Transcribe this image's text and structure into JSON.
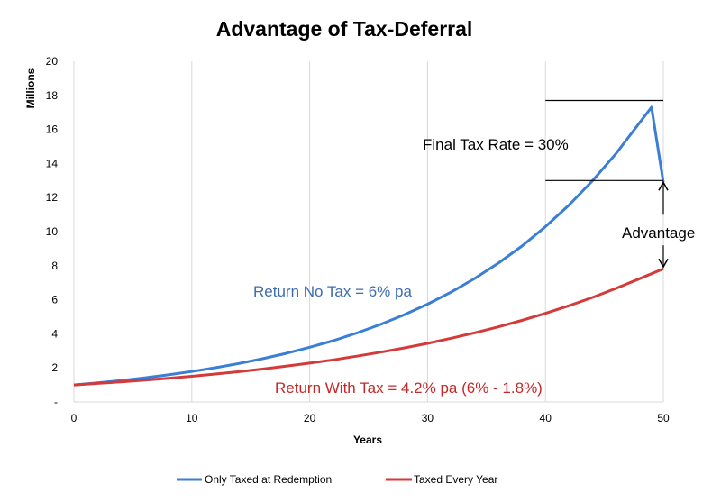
{
  "chart_data": {
    "type": "line",
    "title": "Advantage of Tax-Deferral",
    "xlabel": "Years",
    "ylabel": "Millions",
    "xlim": [
      0,
      50
    ],
    "ylim": [
      0,
      20
    ],
    "x_ticks": [
      "0",
      "10",
      "20",
      "30",
      "40",
      "50"
    ],
    "y_ticks": [
      "-",
      "2",
      "4",
      "6",
      "8",
      "10",
      "12",
      "14",
      "16",
      "18",
      "20"
    ],
    "grid": {
      "vertical": true,
      "horizontal": false
    },
    "legend_position": "bottom",
    "series": [
      {
        "name": "Only Taxed at Redemption",
        "color": "#3a7fd5",
        "points": [
          [
            0,
            1.0
          ],
          [
            2,
            1.12
          ],
          [
            4,
            1.26
          ],
          [
            6,
            1.42
          ],
          [
            8,
            1.59
          ],
          [
            10,
            1.79
          ],
          [
            12,
            2.01
          ],
          [
            14,
            2.26
          ],
          [
            16,
            2.54
          ],
          [
            18,
            2.85
          ],
          [
            20,
            3.21
          ],
          [
            22,
            3.6
          ],
          [
            24,
            4.05
          ],
          [
            26,
            4.55
          ],
          [
            28,
            5.11
          ],
          [
            30,
            5.74
          ],
          [
            32,
            6.45
          ],
          [
            34,
            7.25
          ],
          [
            36,
            8.15
          ],
          [
            38,
            9.15
          ],
          [
            40,
            10.29
          ],
          [
            42,
            11.56
          ],
          [
            44,
            12.99
          ],
          [
            46,
            14.59
          ],
          [
            48,
            16.4
          ],
          [
            49,
            17.3
          ],
          [
            50,
            12.9
          ]
        ]
      },
      {
        "name": "Taxed Every Year",
        "color": "#d43a3a",
        "points": [
          [
            0,
            1.0
          ],
          [
            2,
            1.09
          ],
          [
            4,
            1.18
          ],
          [
            6,
            1.28
          ],
          [
            8,
            1.39
          ],
          [
            10,
            1.51
          ],
          [
            12,
            1.64
          ],
          [
            14,
            1.78
          ],
          [
            16,
            1.93
          ],
          [
            18,
            2.1
          ],
          [
            20,
            2.28
          ],
          [
            22,
            2.47
          ],
          [
            24,
            2.69
          ],
          [
            26,
            2.92
          ],
          [
            28,
            3.17
          ],
          [
            30,
            3.44
          ],
          [
            32,
            3.74
          ],
          [
            34,
            4.06
          ],
          [
            36,
            4.41
          ],
          [
            38,
            4.79
          ],
          [
            40,
            5.2
          ],
          [
            42,
            5.65
          ],
          [
            44,
            6.14
          ],
          [
            46,
            6.67
          ],
          [
            48,
            7.24
          ],
          [
            50,
            7.82
          ]
        ]
      }
    ],
    "annotations": {
      "final_tax": {
        "text": "Final Tax Rate = 30%",
        "x_from": 40,
        "x_to": 50,
        "y_top": 17.7,
        "y_bottom": 13.0
      },
      "advantage": {
        "text": "Advantage",
        "x": 50,
        "y_top": 13.0,
        "y_bottom": 7.82
      },
      "return_no_tax": {
        "text": "Return No Tax = 6% pa",
        "color": "#3d6db0"
      },
      "return_with_tax": {
        "text": "Return With Tax = 4.2% pa (6% - 1.8%)",
        "color": "#c62828"
      }
    }
  }
}
